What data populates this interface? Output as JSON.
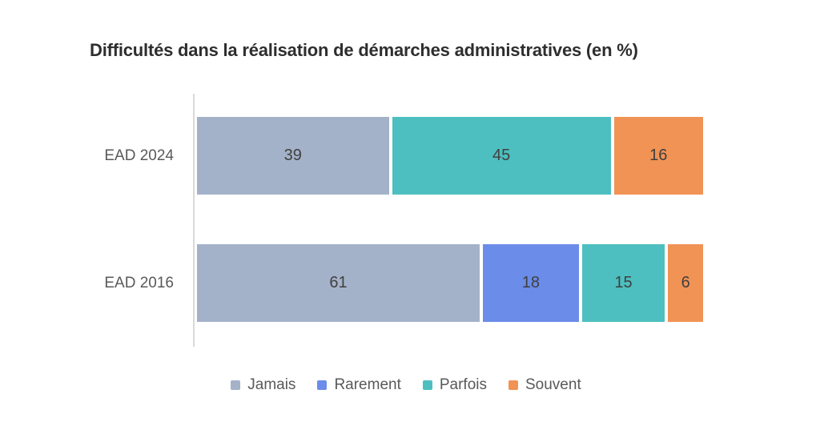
{
  "chart_data": {
    "type": "bar",
    "orientation": "horizontal",
    "stacked": true,
    "title": "Difficultés dans la réalisation de démarches administratives (en %)",
    "categories": [
      "EAD 2024",
      "EAD 2016"
    ],
    "series": [
      {
        "name": "Jamais",
        "color": "#a4b2c9",
        "values": [
          39,
          61
        ]
      },
      {
        "name": "Rarement",
        "color": "#6b8ce8",
        "values": [
          0,
          18
        ]
      },
      {
        "name": "Parfois",
        "color": "#4dbfc0",
        "values": [
          45,
          15
        ]
      },
      {
        "name": "Souvent",
        "color": "#f09355",
        "values": [
          16,
          6
        ]
      }
    ],
    "xlim": [
      0,
      100
    ],
    "grid": false,
    "legend_position": "bottom",
    "value_labels_shown": true
  },
  "style": {
    "background": "#ffffff",
    "axis_color": "#d9d9d9",
    "title_color": "#2e2e2e",
    "category_label_color": "#595959",
    "legend_label_color": "#595959",
    "value_label_color": "#404040"
  }
}
